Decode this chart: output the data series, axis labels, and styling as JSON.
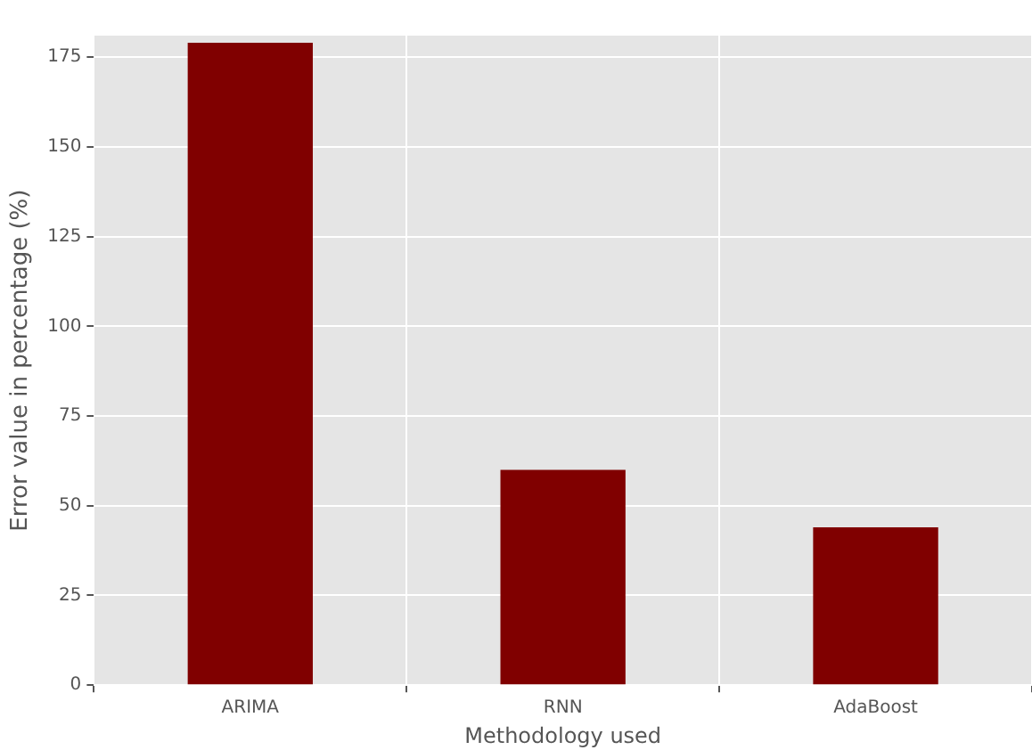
{
  "chart_data": {
    "type": "bar",
    "xlabel": "Methodology used",
    "ylabel": "Error value in percentage (%)",
    "categories": [
      "ARIMA",
      "RNN",
      "AdaBoost"
    ],
    "values": [
      179,
      60,
      44
    ],
    "color": "#800000",
    "ylim": [
      0,
      181
    ],
    "yticks": [
      0,
      25,
      50,
      75,
      100,
      125,
      150,
      175
    ],
    "grid": true
  }
}
